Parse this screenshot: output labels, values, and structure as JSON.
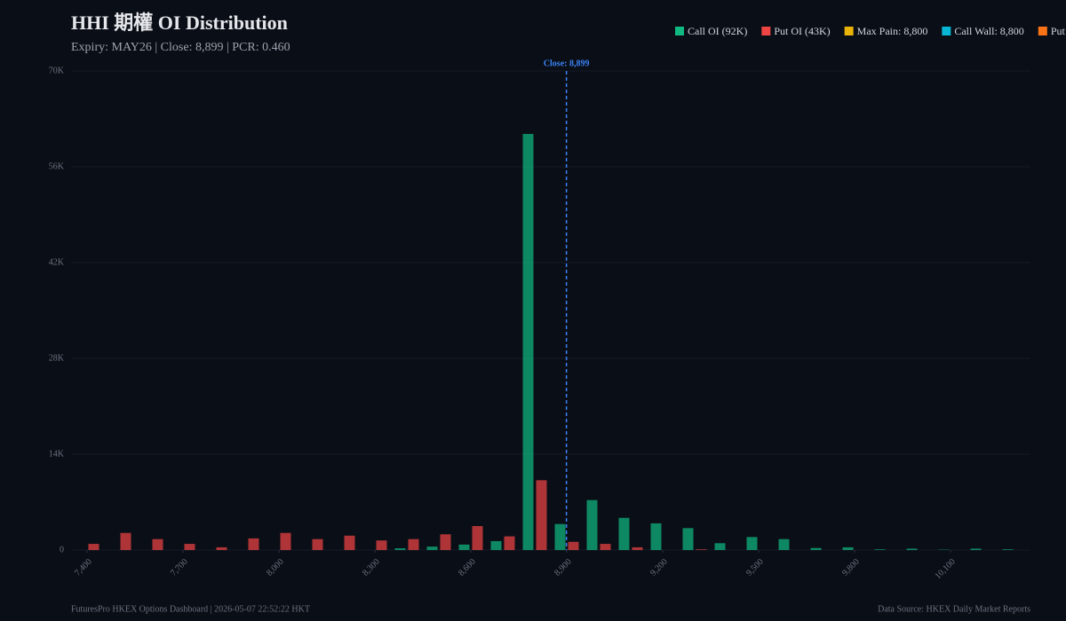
{
  "chart_data": {
    "type": "bar",
    "title": "HHI 期權 OI Distribution",
    "subtitle": "Expiry: MAY26 | Close: 8,899 | PCR: 0.460",
    "x": [
      7400,
      7500,
      7600,
      7700,
      7800,
      7900,
      8000,
      8100,
      8200,
      8300,
      8400,
      8500,
      8600,
      8700,
      8800,
      8900,
      9000,
      9100,
      9200,
      9300,
      9400,
      9500,
      9600,
      9700,
      9800,
      9900,
      10000,
      10100,
      10200,
      10300
    ],
    "xlim": [
      7350,
      10350
    ],
    "xticks": [
      {
        "value": 7400,
        "label": "7,400"
      },
      {
        "value": 7700,
        "label": "7,700"
      },
      {
        "value": 8000,
        "label": "8,000"
      },
      {
        "value": 8300,
        "label": "8,300"
      },
      {
        "value": 8600,
        "label": "8,600"
      },
      {
        "value": 8900,
        "label": "8,900"
      },
      {
        "value": 9200,
        "label": "9,200"
      },
      {
        "value": 9500,
        "label": "9,500"
      },
      {
        "value": 9800,
        "label": "9,800"
      },
      {
        "value": 10100,
        "label": "10,100"
      }
    ],
    "ylim": [
      0,
      70000
    ],
    "yticks": [
      0,
      {
        "value": 14000,
        "label": "14K"
      },
      {
        "value": 28000,
        "label": "28K"
      },
      {
        "value": 42000,
        "label": "42K"
      },
      {
        "value": 56000,
        "label": "56K"
      },
      {
        "value": 70000,
        "label": "70K"
      }
    ],
    "grid": true,
    "series": [
      {
        "name": "Call OI (92K)",
        "color": "#10b981",
        "values": [
          0,
          0,
          0,
          0,
          0,
          0,
          0,
          0,
          0,
          0,
          250,
          500,
          800,
          1300,
          60800,
          3800,
          7300,
          4700,
          3900,
          3200,
          1000,
          1900,
          1600,
          300,
          400,
          100,
          200,
          50,
          200,
          100
        ]
      },
      {
        "name": "Put OI (43K)",
        "color": "#ef4444",
        "values": [
          900,
          2500,
          1600,
          900,
          400,
          1700,
          2500,
          1600,
          2100,
          1400,
          1600,
          2300,
          3500,
          2000,
          10200,
          1200,
          900,
          400,
          0,
          100,
          0,
          0,
          0,
          0,
          0,
          0,
          0,
          0,
          0,
          0
        ]
      }
    ],
    "legend_extra": [
      {
        "name": "Max Pain: 8,800",
        "color": "#eab308"
      },
      {
        "name": "Call Wall: 8,800",
        "color": "#06b6d4"
      },
      {
        "name": "Put Wall",
        "color": "#f97316"
      }
    ],
    "close_line": {
      "value": 8899,
      "label": "Close: 8,899",
      "color": "#3b82f6"
    },
    "footer_left": "FuturesPro HKEX Options Dashboard | 2026-05-07 22:52:22 HKT",
    "footer_right": "Data Source: HKEX Daily Market Reports"
  }
}
